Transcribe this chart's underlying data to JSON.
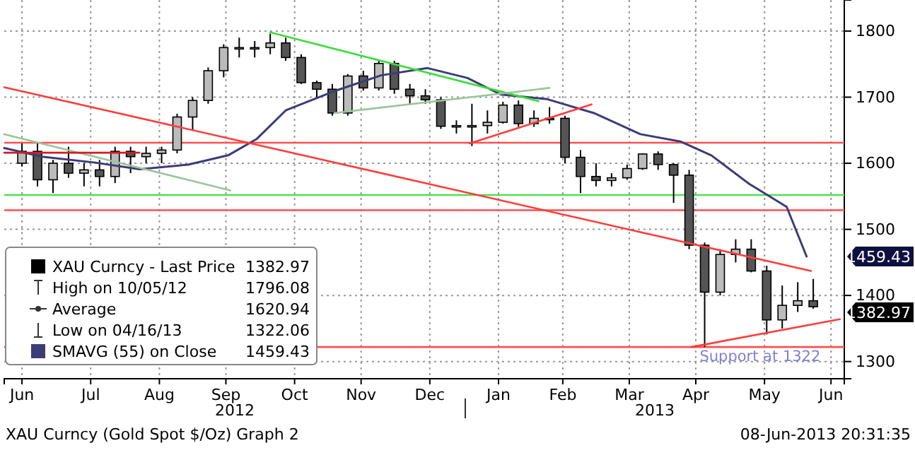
{
  "chart_data": {
    "type": "candlestick",
    "xlim": [
      "2012-06-07",
      "2013-06-21"
    ],
    "xticks": [
      {
        "value": "2012-06-15",
        "label": "Jun"
      },
      {
        "value": "2012-07-16",
        "label": "Jul"
      },
      {
        "value": "2012-08-16",
        "label": "Aug"
      },
      {
        "value": "2012-09-15",
        "label": "Sep"
      },
      {
        "value": "2012-10-16",
        "label": "Oct"
      },
      {
        "value": "2012-11-15",
        "label": "Nov"
      },
      {
        "value": "2012-12-16",
        "label": "Dec"
      },
      {
        "value": "2013-01-16",
        "label": "Jan"
      },
      {
        "value": "2013-02-14",
        "label": "Feb"
      },
      {
        "value": "2013-03-16",
        "label": "Mar"
      },
      {
        "value": "2013-04-15",
        "label": "Apr"
      },
      {
        "value": "2013-05-16",
        "label": "May"
      },
      {
        "value": "2013-06-15",
        "label": "Jun"
      }
    ],
    "ylim": [
      1274,
      1847
    ],
    "yticks": [
      1300,
      1400,
      1500,
      1600,
      1700,
      1800
    ],
    "grid": true,
    "legend": "bottom left",
    "series": [
      {
        "name": "XAU Curncy - Last Price",
        "color": "#000000",
        "x": [
          "2012-06-15",
          "2012-06-22",
          "2012-06-29",
          "2012-07-06",
          "2012-07-13",
          "2012-07-20",
          "2012-07-27",
          "2012-08-03",
          "2012-08-10",
          "2012-08-17",
          "2012-08-24",
          "2012-08-31",
          "2012-09-07",
          "2012-09-14",
          "2012-09-21",
          "2012-09-28",
          "2012-10-05",
          "2012-10-12",
          "2012-10-19",
          "2012-10-26",
          "2012-11-02",
          "2012-11-09",
          "2012-11-16",
          "2012-11-23",
          "2012-11-30",
          "2012-12-07",
          "2012-12-14",
          "2012-12-21",
          "2012-12-28",
          "2013-01-04",
          "2013-01-11",
          "2013-01-18",
          "2013-01-25",
          "2013-02-01",
          "2013-02-08",
          "2013-02-15",
          "2013-02-22",
          "2013-03-01",
          "2013-03-08",
          "2013-03-15",
          "2013-03-22",
          "2013-03-29",
          "2013-04-05",
          "2013-04-12",
          "2013-04-19",
          "2013-04-26",
          "2013-05-03",
          "2013-05-10",
          "2013-05-17",
          "2013-05-24",
          "2013-05-31",
          "2013-06-07"
        ],
        "ohlc": [
          [
            1600,
            1630,
            1595,
            1618
          ],
          [
            1618,
            1630,
            1565,
            1575
          ],
          [
            1575,
            1605,
            1555,
            1600
          ],
          [
            1600,
            1625,
            1578,
            1585
          ],
          [
            1585,
            1600,
            1565,
            1590
          ],
          [
            1590,
            1605,
            1565,
            1580
          ],
          [
            1580,
            1625,
            1570,
            1618
          ],
          [
            1618,
            1625,
            1585,
            1610
          ],
          [
            1610,
            1625,
            1600,
            1615
          ],
          [
            1615,
            1625,
            1600,
            1620
          ],
          [
            1620,
            1675,
            1615,
            1670
          ],
          [
            1670,
            1700,
            1650,
            1695
          ],
          [
            1695,
            1745,
            1690,
            1740
          ],
          [
            1740,
            1780,
            1730,
            1775
          ],
          [
            1775,
            1790,
            1760,
            1775
          ],
          [
            1775,
            1785,
            1760,
            1775
          ],
          [
            1775,
            1796.08,
            1765,
            1782
          ],
          [
            1782,
            1790,
            1755,
            1760
          ],
          [
            1760,
            1765,
            1720,
            1722
          ],
          [
            1722,
            1725,
            1700,
            1712
          ],
          [
            1712,
            1720,
            1672,
            1676
          ],
          [
            1676,
            1735,
            1672,
            1732
          ],
          [
            1732,
            1740,
            1710,
            1714
          ],
          [
            1714,
            1755,
            1710,
            1751
          ],
          [
            1751,
            1755,
            1705,
            1712
          ],
          [
            1712,
            1720,
            1690,
            1702
          ],
          [
            1702,
            1712,
            1690,
            1696
          ],
          [
            1696,
            1700,
            1652,
            1656
          ],
          [
            1656,
            1665,
            1645,
            1657
          ],
          [
            1657,
            1690,
            1626,
            1657
          ],
          [
            1657,
            1680,
            1645,
            1662
          ],
          [
            1662,
            1693,
            1660,
            1688
          ],
          [
            1688,
            1695,
            1655,
            1660
          ],
          [
            1660,
            1680,
            1655,
            1668
          ],
          [
            1668,
            1685,
            1660,
            1668
          ],
          [
            1668,
            1672,
            1600,
            1609
          ],
          [
            1609,
            1620,
            1555,
            1580
          ],
          [
            1580,
            1600,
            1565,
            1574
          ],
          [
            1574,
            1585,
            1565,
            1578
          ],
          [
            1578,
            1598,
            1575,
            1592
          ],
          [
            1592,
            1615,
            1590,
            1614
          ],
          [
            1614,
            1618,
            1590,
            1598
          ],
          [
            1598,
            1600,
            1540,
            1582
          ],
          [
            1582,
            1590,
            1470,
            1476
          ],
          [
            1476,
            1480,
            1322.06,
            1405
          ],
          [
            1405,
            1470,
            1400,
            1462
          ],
          [
            1462,
            1485,
            1450,
            1470
          ],
          [
            1470,
            1485,
            1435,
            1437
          ],
          [
            1437,
            1445,
            1341,
            1363
          ],
          [
            1363,
            1415,
            1350,
            1385
          ],
          [
            1385,
            1420,
            1375,
            1392
          ],
          [
            1392,
            1425,
            1380,
            1382.97
          ]
        ]
      },
      {
        "type": "line",
        "name": "SMAVG (55) on Close",
        "color": "#3c3c78",
        "x": [
          "2012-06-07",
          "2012-06-24",
          "2012-07-18",
          "2012-08-07",
          "2012-08-29",
          "2012-09-16",
          "2012-09-29",
          "2012-10-12",
          "2012-11-02",
          "2012-11-24",
          "2012-12-15",
          "2013-01-02",
          "2013-01-17",
          "2013-02-07",
          "2013-02-28",
          "2013-03-21",
          "2013-04-08",
          "2013-04-22",
          "2013-05-09",
          "2013-05-26",
          "2013-06-04"
        ],
        "values": [
          1623,
          1610,
          1601,
          1591,
          1598,
          1612,
          1637,
          1680,
          1708,
          1733,
          1744,
          1729,
          1704,
          1697,
          1676,
          1644,
          1633,
          1612,
          1569,
          1534,
          1459
        ]
      },
      {
        "type": "line",
        "color": "#ff3c3c",
        "x": [
          "2012-06-07",
          "2013-06-06"
        ],
        "values": [
          1715,
          1437
        ]
      },
      {
        "type": "line",
        "color": "#3cdc3c",
        "x": [
          "2012-10-05",
          "2013-02-03"
        ],
        "values": [
          1798,
          1694
        ]
      },
      {
        "type": "line",
        "color": "#9cc49c",
        "x": [
          "2012-06-07",
          "2012-09-17"
        ],
        "values": [
          1644,
          1559
        ]
      },
      {
        "type": "line",
        "color": "#9cc49c",
        "x": [
          "2012-11-03",
          "2013-02-08"
        ],
        "values": [
          1676,
          1714
        ]
      },
      {
        "type": "line",
        "color": "#ff3c3c",
        "x": [
          "2013-01-03",
          "2013-02-27"
        ],
        "values": [
          1630,
          1689
        ]
      },
      {
        "type": "line",
        "color": "#d02020",
        "x": [
          "2012-06-07",
          "2012-08-07"
        ],
        "values": [
          1616,
          1616
        ]
      },
      {
        "type": "line",
        "color": "#ff3c3c",
        "x": [
          "2013-04-13",
          "2013-06-19"
        ],
        "values": [
          1322,
          1364
        ]
      }
    ],
    "ref_lines": [
      {
        "axis": "y",
        "value": 1631,
        "color": "#ff5050"
      },
      {
        "axis": "y",
        "value": 1552,
        "color": "#50e050"
      },
      {
        "axis": "y",
        "value": 1529,
        "color": "#ff5050"
      },
      {
        "axis": "y",
        "value": 1322,
        "color": "#ff5050",
        "label": "Support at 1322"
      }
    ],
    "annotations": [
      "1382.97",
      "High on 10/05/12",
      "1796.08",
      "Average",
      "1620.94",
      "Low on 04/16/13",
      "1322.06",
      "1459.43",
      "2012",
      "2013",
      "XAU Curncy (Gold Spot  $/Oz) Graph 2",
      "08-Jun-2013 20:31:35",
      "1459.43",
      "1382.97"
    ]
  }
}
